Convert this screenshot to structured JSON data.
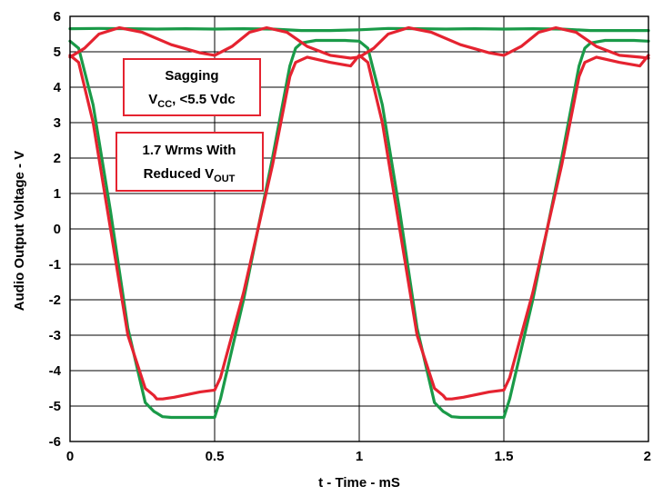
{
  "chart_data": {
    "type": "line",
    "title": "",
    "xlabel": "t - Time - mS",
    "ylabel": "Audio Output Voltage - V",
    "xlim": [
      0,
      2
    ],
    "ylim": [
      -6,
      6
    ],
    "xticks": [
      0,
      0.5,
      1,
      1.5,
      2
    ],
    "xtick_labels": [
      "0",
      "0.5",
      "1",
      "1.5",
      "2"
    ],
    "yticks": [
      6,
      5,
      4,
      3,
      2,
      1,
      0,
      -1,
      -2,
      -3,
      -4,
      -5,
      -6
    ],
    "ytick_labels": [
      "6",
      "5",
      "4",
      "3",
      "2",
      "1",
      "0",
      "-1",
      "-2",
      "-3",
      "-4",
      "-5",
      "-6"
    ],
    "grid": true,
    "colors": {
      "green": "#1a9a48",
      "red": "#e52330",
      "frame": "#000000"
    },
    "series": [
      {
        "color": "#1a9a48",
        "x": [
          0,
          0.03,
          0.08,
          0.14,
          0.2,
          0.26,
          0.29,
          0.3,
          0.32,
          0.35,
          0.45,
          0.5,
          0.52,
          0.6,
          0.7,
          0.76,
          0.78,
          0.8,
          0.85,
          0.95,
          1.0,
          1.03,
          1.08,
          1.14,
          1.2,
          1.26,
          1.29,
          1.3,
          1.32,
          1.35,
          1.45,
          1.5,
          1.52,
          1.6,
          1.7,
          1.76,
          1.78,
          1.8,
          1.85,
          1.95,
          2.0
        ],
        "y": [
          5.3,
          5.1,
          3.5,
          0.5,
          -2.8,
          -4.9,
          -5.15,
          -5.2,
          -5.3,
          -5.32,
          -5.32,
          -5.32,
          -4.8,
          -2.0,
          2.0,
          4.6,
          5.1,
          5.25,
          5.32,
          5.32,
          5.3,
          5.1,
          3.5,
          0.5,
          -2.8,
          -4.9,
          -5.15,
          -5.2,
          -5.3,
          -5.32,
          -5.32,
          -5.32,
          -4.8,
          -2.0,
          2.0,
          4.6,
          5.1,
          5.25,
          5.32,
          5.32,
          5.3
        ]
      },
      {
        "color": "#1a9a48",
        "x": [
          0,
          0.1,
          0.2,
          0.3,
          0.4,
          0.5,
          0.6,
          0.7,
          0.8,
          0.9,
          1.0,
          1.1,
          1.2,
          1.3,
          1.4,
          1.5,
          1.6,
          1.7,
          1.8,
          1.9,
          2.0
        ],
        "y": [
          5.65,
          5.66,
          5.65,
          5.64,
          5.65,
          5.64,
          5.65,
          5.64,
          5.6,
          5.6,
          5.62,
          5.66,
          5.65,
          5.64,
          5.65,
          5.64,
          5.65,
          5.64,
          5.6,
          5.6,
          5.6
        ]
      },
      {
        "color": "#e52330",
        "x": [
          0,
          0.03,
          0.08,
          0.14,
          0.2,
          0.26,
          0.29,
          0.3,
          0.32,
          0.36,
          0.45,
          0.5,
          0.52,
          0.6,
          0.7,
          0.76,
          0.78,
          0.82,
          0.9,
          0.97,
          1.0,
          1.03,
          1.08,
          1.14,
          1.2,
          1.26,
          1.29,
          1.3,
          1.32,
          1.36,
          1.45,
          1.5,
          1.52,
          1.6,
          1.7,
          1.76,
          1.78,
          1.82,
          1.9,
          1.97,
          2.0
        ],
        "y": [
          4.9,
          4.7,
          3.0,
          0.0,
          -3.0,
          -4.5,
          -4.7,
          -4.8,
          -4.8,
          -4.75,
          -4.6,
          -4.55,
          -4.2,
          -1.8,
          1.8,
          4.3,
          4.7,
          4.85,
          4.7,
          4.6,
          4.9,
          4.7,
          3.0,
          0.0,
          -3.0,
          -4.5,
          -4.7,
          -4.8,
          -4.8,
          -4.75,
          -4.6,
          -4.55,
          -4.2,
          -1.8,
          1.8,
          4.3,
          4.7,
          4.85,
          4.7,
          4.6,
          4.9
        ]
      },
      {
        "color": "#e52330",
        "x": [
          0,
          0.05,
          0.1,
          0.17,
          0.25,
          0.35,
          0.45,
          0.5,
          0.56,
          0.62,
          0.68,
          0.75,
          0.82,
          0.9,
          0.97,
          1.0,
          1.05,
          1.1,
          1.17,
          1.25,
          1.35,
          1.45,
          1.5,
          1.56,
          1.62,
          1.68,
          1.75,
          1.82,
          1.9,
          1.97,
          2.0
        ],
        "y": [
          4.85,
          5.1,
          5.5,
          5.68,
          5.55,
          5.2,
          4.97,
          4.9,
          5.15,
          5.55,
          5.68,
          5.55,
          5.15,
          4.9,
          4.82,
          4.85,
          5.1,
          5.5,
          5.68,
          5.55,
          5.2,
          4.97,
          4.9,
          5.15,
          5.55,
          5.68,
          5.55,
          5.15,
          4.9,
          4.85,
          4.82
        ]
      }
    ],
    "annotations": [
      {
        "lines": [
          {
            "text": "Sagging"
          },
          {
            "main": "V",
            "sub": "CC",
            "rest": ", <5.5 Vdc"
          }
        ]
      },
      {
        "lines": [
          {
            "text": "1.7 Wrms With"
          },
          {
            "main": "Reduced V",
            "sub": "OUT",
            "rest": ""
          }
        ]
      }
    ]
  }
}
